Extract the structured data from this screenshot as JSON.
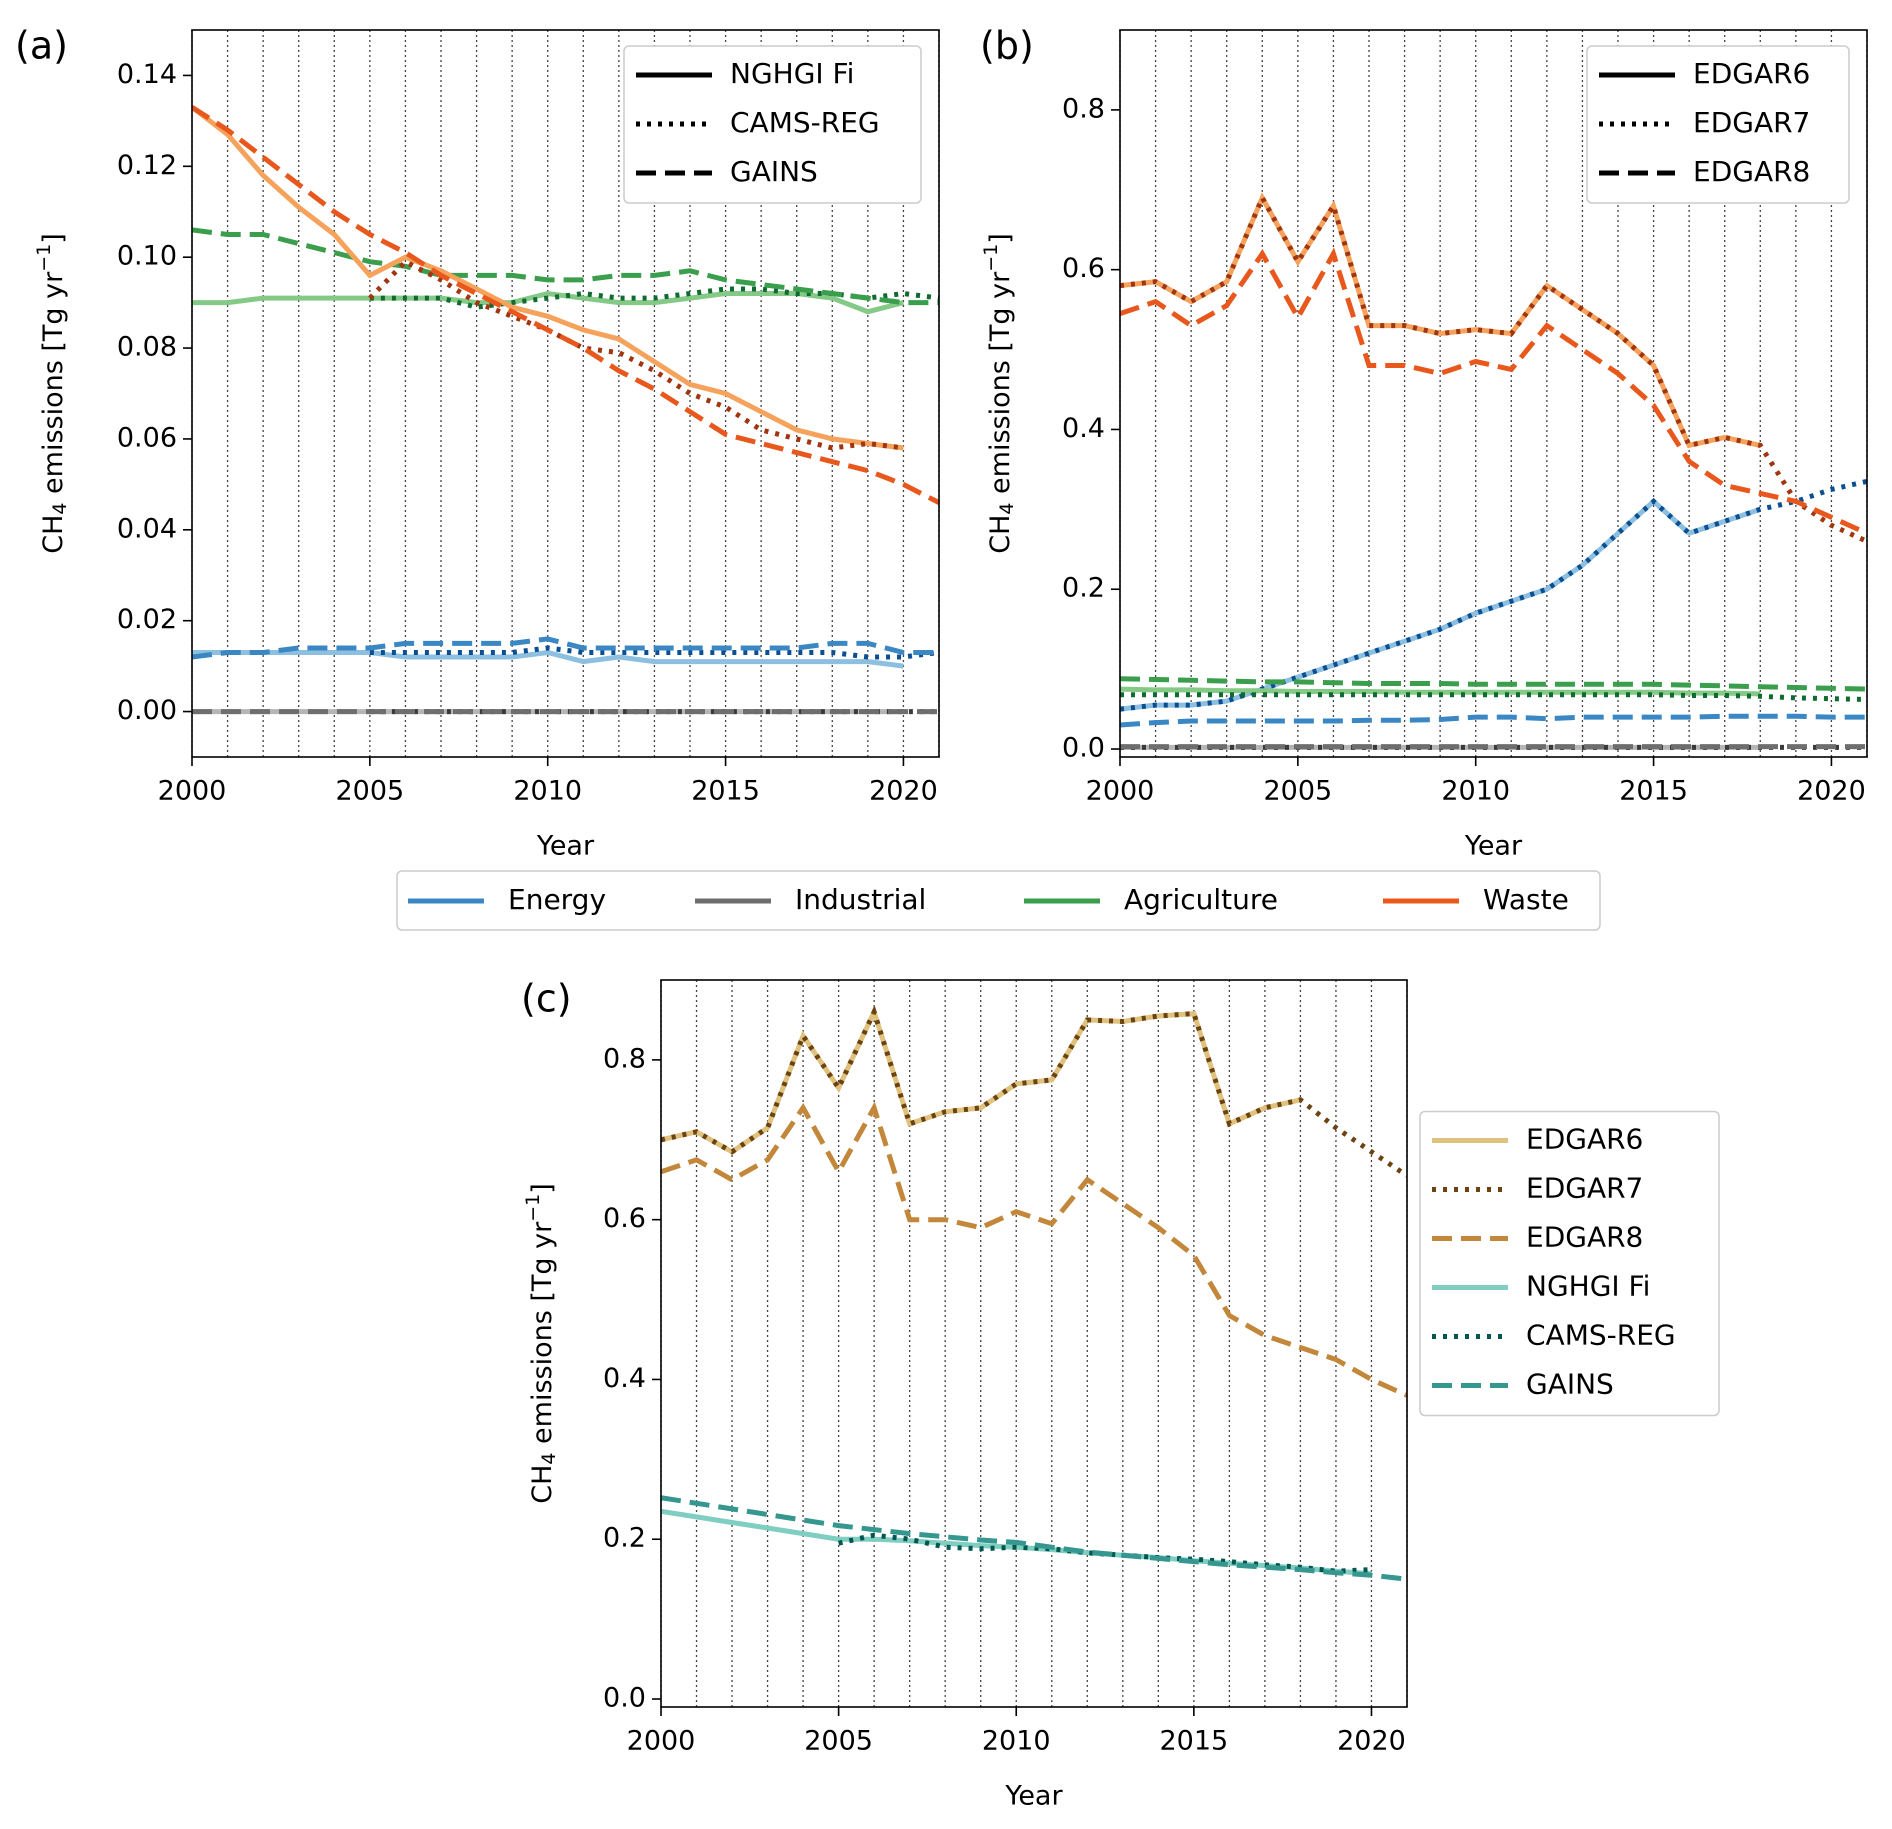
{
  "chart_data": [
    {
      "type": "line",
      "label": "(a)",
      "xlabel": "Year",
      "ylabel": [
        "CH",
        "4",
        " emissions [Tg yr",
        "−1",
        "]"
      ],
      "x": [
        2000,
        2001,
        2002,
        2003,
        2004,
        2005,
        2006,
        2007,
        2008,
        2009,
        2010,
        2011,
        2012,
        2013,
        2014,
        2015,
        2016,
        2017,
        2018,
        2019,
        2020,
        2021
      ],
      "xlim": [
        2000,
        2021
      ],
      "xticks": [
        2000,
        2005,
        2010,
        2015,
        2020
      ],
      "ylim": [
        -0.01,
        0.15
      ],
      "yticks": [
        {
          "value": 0,
          "label": "0.00"
        },
        0.02,
        0.04,
        0.06,
        0.08,
        {
          "value": 0.1,
          "label": "0.10"
        },
        0.12,
        0.14
      ],
      "grid": true,
      "legend": {
        "position": "upper right",
        "entries": [
          {
            "name": "NGHGI Fi",
            "style": "solid"
          },
          {
            "name": "CAMS-REG",
            "style": "dotted"
          },
          {
            "name": "GAINS",
            "style": "dashed"
          }
        ]
      },
      "color_legend": {
        "position": "below",
        "entries": [
          {
            "name": "Energy",
            "color": "#3a87c4"
          },
          {
            "name": "Industrial",
            "color": "#6e6e6e"
          },
          {
            "name": "Agriculture",
            "color": "#3a9e4c"
          },
          {
            "name": "Waste",
            "color": "#e8581d"
          }
        ]
      },
      "series": [
        {
          "color": "#b5b5b5",
          "style": "solid",
          "values": [
            0,
            0,
            0,
            0,
            0,
            0,
            0,
            0,
            0,
            0,
            0,
            0,
            0,
            0,
            0,
            0,
            0,
            0,
            0,
            0,
            0,
            null
          ]
        },
        {
          "color": "#3a3a3a",
          "style": "dotted",
          "values": [
            null,
            null,
            null,
            null,
            null,
            0,
            0,
            0,
            0,
            0,
            0,
            0,
            0,
            0,
            0,
            0,
            0,
            0,
            0,
            0,
            0,
            0
          ]
        },
        {
          "color": "#6e6e6e",
          "style": "dashed",
          "values": [
            0,
            0,
            0,
            0,
            0,
            0,
            0,
            0,
            0,
            0,
            0,
            0,
            0,
            0,
            0,
            0,
            0,
            0,
            0,
            0,
            0,
            0
          ]
        },
        {
          "color": "#8dbfe0",
          "style": "solid",
          "values": [
            0.013,
            0.013,
            0.013,
            0.013,
            0.013,
            0.013,
            0.012,
            0.012,
            0.012,
            0.012,
            0.013,
            0.011,
            0.012,
            0.011,
            0.011,
            0.011,
            0.011,
            0.011,
            0.011,
            0.011,
            0.01,
            null
          ]
        },
        {
          "color": "#0b4f93",
          "style": "dotted",
          "values": [
            null,
            null,
            null,
            null,
            null,
            0.013,
            0.013,
            0.013,
            0.013,
            0.013,
            0.014,
            0.013,
            0.013,
            0.013,
            0.013,
            0.013,
            0.013,
            0.013,
            0.013,
            0.012,
            0.012,
            0.013
          ]
        },
        {
          "color": "#3a87c4",
          "style": "dashed",
          "values": [
            0.012,
            0.013,
            0.013,
            0.014,
            0.014,
            0.014,
            0.015,
            0.015,
            0.015,
            0.015,
            0.016,
            0.014,
            0.014,
            0.014,
            0.014,
            0.014,
            0.014,
            0.014,
            0.015,
            0.015,
            0.013,
            0.013
          ]
        },
        {
          "color": "#85c986",
          "style": "solid",
          "values": [
            0.09,
            0.09,
            0.091,
            0.091,
            0.091,
            0.091,
            0.091,
            0.091,
            0.09,
            0.09,
            0.092,
            0.091,
            0.09,
            0.09,
            0.091,
            0.092,
            0.092,
            0.092,
            0.091,
            0.088,
            0.09,
            null
          ]
        },
        {
          "color": "#0f6b30",
          "style": "dotted",
          "values": [
            null,
            null,
            null,
            null,
            null,
            0.091,
            0.091,
            0.091,
            0.089,
            0.09,
            0.091,
            0.092,
            0.091,
            0.091,
            0.092,
            0.093,
            0.093,
            0.092,
            0.092,
            0.091,
            0.092,
            0.091
          ]
        },
        {
          "color": "#3a9e4c",
          "style": "dashed",
          "values": [
            0.106,
            0.105,
            0.105,
            0.103,
            0.101,
            0.099,
            0.098,
            0.096,
            0.096,
            0.096,
            0.095,
            0.095,
            0.096,
            0.096,
            0.097,
            0.095,
            0.094,
            0.093,
            0.092,
            0.091,
            0.09,
            0.09
          ]
        },
        {
          "color": "#f5a35c",
          "style": "solid",
          "values": [
            0.133,
            0.127,
            0.118,
            0.111,
            0.105,
            0.096,
            0.1,
            0.097,
            0.093,
            0.089,
            0.087,
            0.084,
            0.082,
            0.077,
            0.072,
            0.07,
            0.066,
            0.062,
            0.06,
            0.059,
            0.058,
            null
          ]
        },
        {
          "color": "#a0350f",
          "style": "dotted",
          "values": [
            null,
            null,
            null,
            null,
            null,
            0.091,
            0.099,
            0.095,
            0.09,
            0.087,
            0.084,
            0.08,
            0.079,
            0.075,
            0.07,
            0.067,
            0.062,
            0.06,
            0.058,
            0.059,
            0.058,
            null
          ]
        },
        {
          "color": "#e8581d",
          "style": "dashed",
          "values": [
            0.133,
            0.128,
            0.122,
            0.116,
            0.11,
            0.105,
            0.101,
            0.096,
            0.092,
            0.088,
            0.084,
            0.08,
            0.075,
            0.071,
            0.066,
            0.061,
            0.059,
            0.057,
            0.055,
            0.053,
            0.05,
            0.046
          ]
        }
      ]
    },
    {
      "type": "line",
      "label": "(b)",
      "xlabel": "Year",
      "ylabel": [
        "CH",
        "4",
        " emissions [Tg yr",
        "−1",
        "]"
      ],
      "x": [
        2000,
        2001,
        2002,
        2003,
        2004,
        2005,
        2006,
        2007,
        2008,
        2009,
        2010,
        2011,
        2012,
        2013,
        2014,
        2015,
        2016,
        2017,
        2018,
        2019,
        2020,
        2021
      ],
      "xlim": [
        2000,
        2021
      ],
      "xticks": [
        2000,
        2005,
        2010,
        2015,
        2020
      ],
      "ylim": [
        -0.01,
        0.9
      ],
      "yticks": [
        {
          "value": 0,
          "label": "0.0"
        },
        0.2,
        0.4,
        0.6,
        0.8
      ],
      "grid": true,
      "legend": {
        "position": "upper right",
        "entries": [
          {
            "name": "EDGAR6",
            "style": "solid"
          },
          {
            "name": "EDGAR7",
            "style": "dotted"
          },
          {
            "name": "EDGAR8",
            "style": "dashed"
          }
        ]
      },
      "series": [
        {
          "color": "#b5b5b5",
          "style": "solid",
          "values": [
            0.002,
            0.002,
            0.002,
            0.002,
            0.002,
            0.002,
            0.002,
            0.002,
            0.002,
            0.002,
            0.002,
            0.002,
            0.002,
            0.002,
            0.002,
            0.002,
            0.002,
            0.002,
            0.002,
            null,
            null,
            null
          ]
        },
        {
          "color": "#3a3a3a",
          "style": "dotted",
          "values": [
            0.002,
            0.002,
            0.002,
            0.002,
            0.002,
            0.002,
            0.002,
            0.002,
            0.002,
            0.002,
            0.002,
            0.002,
            0.002,
            0.002,
            0.002,
            0.002,
            0.002,
            0.002,
            0.002,
            0.002,
            0.002,
            0.002
          ]
        },
        {
          "color": "#6e6e6e",
          "style": "dashed",
          "values": [
            0.003,
            0.003,
            0.003,
            0.003,
            0.003,
            0.003,
            0.003,
            0.003,
            0.003,
            0.003,
            0.003,
            0.003,
            0.003,
            0.003,
            0.003,
            0.003,
            0.003,
            0.003,
            0.003,
            0.003,
            0.003,
            0.003
          ]
        },
        {
          "color": "#8dbfe0",
          "style": "solid",
          "values": [
            0.05,
            0.055,
            0.055,
            0.06,
            0.075,
            0.09,
            0.105,
            0.12,
            0.135,
            0.15,
            0.17,
            0.185,
            0.2,
            0.23,
            0.27,
            0.31,
            0.27,
            0.285,
            0.3,
            null,
            null,
            null
          ]
        },
        {
          "color": "#0b4f93",
          "style": "dotted",
          "values": [
            0.05,
            0.055,
            0.055,
            0.06,
            0.075,
            0.09,
            0.105,
            0.12,
            0.135,
            0.15,
            0.17,
            0.185,
            0.2,
            0.23,
            0.27,
            0.31,
            0.27,
            0.285,
            0.3,
            0.31,
            0.325,
            0.335
          ]
        },
        {
          "color": "#3a87c4",
          "style": "dashed",
          "values": [
            0.03,
            0.033,
            0.035,
            0.035,
            0.035,
            0.035,
            0.035,
            0.036,
            0.036,
            0.037,
            0.04,
            0.04,
            0.038,
            0.04,
            0.04,
            0.04,
            0.04,
            0.041,
            0.041,
            0.041,
            0.04,
            0.04
          ]
        },
        {
          "color": "#85c986",
          "style": "solid",
          "values": [
            0.075,
            0.074,
            0.074,
            0.073,
            0.073,
            0.072,
            0.072,
            0.072,
            0.071,
            0.071,
            0.071,
            0.071,
            0.071,
            0.071,
            0.071,
            0.071,
            0.07,
            0.07,
            0.069,
            null,
            null,
            null
          ]
        },
        {
          "color": "#0f6b30",
          "style": "dotted",
          "values": [
            0.068,
            0.068,
            0.068,
            0.068,
            0.068,
            0.068,
            0.068,
            0.068,
            0.068,
            0.068,
            0.068,
            0.068,
            0.068,
            0.068,
            0.068,
            0.068,
            0.067,
            0.067,
            0.066,
            0.064,
            0.063,
            0.062
          ]
        },
        {
          "color": "#3a9e4c",
          "style": "dashed",
          "values": [
            0.088,
            0.087,
            0.086,
            0.085,
            0.084,
            0.084,
            0.083,
            0.082,
            0.082,
            0.082,
            0.081,
            0.081,
            0.081,
            0.081,
            0.081,
            0.081,
            0.08,
            0.079,
            0.078,
            0.077,
            0.076,
            0.075
          ]
        },
        {
          "color": "#f5a35c",
          "style": "solid",
          "values": [
            0.58,
            0.585,
            0.56,
            0.585,
            0.69,
            0.61,
            0.68,
            0.53,
            0.53,
            0.52,
            0.525,
            0.52,
            0.58,
            0.55,
            0.52,
            0.48,
            0.38,
            0.39,
            0.38,
            null,
            null,
            null
          ]
        },
        {
          "color": "#a0350f",
          "style": "dotted",
          "values": [
            0.58,
            0.585,
            0.56,
            0.585,
            0.69,
            0.61,
            0.68,
            0.53,
            0.53,
            0.52,
            0.525,
            0.52,
            0.58,
            0.55,
            0.52,
            0.48,
            0.38,
            0.39,
            0.38,
            0.31,
            0.28,
            0.26
          ]
        },
        {
          "color": "#e8581d",
          "style": "dashed",
          "values": [
            0.545,
            0.56,
            0.53,
            0.555,
            0.62,
            0.54,
            0.62,
            0.48,
            0.48,
            0.47,
            0.485,
            0.475,
            0.53,
            0.5,
            0.47,
            0.43,
            0.36,
            0.33,
            0.32,
            0.31,
            0.29,
            0.27
          ]
        }
      ]
    },
    {
      "type": "line",
      "label": "(c)",
      "xlabel": "Year",
      "ylabel": [
        "CH",
        "4",
        " emissions [Tg yr",
        "−1",
        "]"
      ],
      "x": [
        2000,
        2001,
        2002,
        2003,
        2004,
        2005,
        2006,
        2007,
        2008,
        2009,
        2010,
        2011,
        2012,
        2013,
        2014,
        2015,
        2016,
        2017,
        2018,
        2019,
        2020,
        2021
      ],
      "xlim": [
        2000,
        2021
      ],
      "xticks": [
        2000,
        2005,
        2010,
        2015,
        2020
      ],
      "ylim": [
        -0.01,
        0.9
      ],
      "yticks": [
        {
          "value": 0,
          "label": "0.0"
        },
        0.2,
        0.4,
        0.6,
        0.8
      ],
      "grid": true,
      "legend": {
        "position": "outside right"
      },
      "series": [
        {
          "name": "EDGAR6",
          "color": "#dfc27d",
          "style": "solid",
          "values": [
            0.7,
            0.71,
            0.685,
            0.715,
            0.83,
            0.765,
            0.86,
            0.72,
            0.735,
            0.74,
            0.77,
            0.775,
            0.85,
            0.848,
            0.855,
            0.858,
            0.72,
            0.74,
            0.75,
            null,
            null,
            null
          ]
        },
        {
          "name": "EDGAR7",
          "color": "#6b4210",
          "style": "dotted",
          "values": [
            0.7,
            0.71,
            0.685,
            0.715,
            0.83,
            0.765,
            0.86,
            0.72,
            0.735,
            0.74,
            0.77,
            0.775,
            0.85,
            0.848,
            0.855,
            0.858,
            0.72,
            0.74,
            0.75,
            0.715,
            0.685,
            0.655
          ]
        },
        {
          "name": "EDGAR8",
          "color": "#c2873a",
          "style": "dashed",
          "values": [
            0.66,
            0.675,
            0.65,
            0.675,
            0.74,
            0.66,
            0.74,
            0.6,
            0.6,
            0.59,
            0.61,
            0.595,
            0.65,
            0.62,
            0.59,
            0.555,
            0.48,
            0.455,
            0.44,
            0.425,
            0.4,
            0.38
          ]
        },
        {
          "name": "NGHGI Fi",
          "color": "#80cdc1",
          "style": "solid",
          "values": [
            0.235,
            0.228,
            0.221,
            0.214,
            0.207,
            0.2,
            0.2,
            0.198,
            0.195,
            0.192,
            0.19,
            0.187,
            0.183,
            0.18,
            0.177,
            0.173,
            0.17,
            0.167,
            0.164,
            0.16,
            0.157,
            null
          ]
        },
        {
          "name": "CAMS-REG",
          "color": "#01574f",
          "style": "dotted",
          "values": [
            null,
            null,
            null,
            null,
            null,
            0.195,
            0.205,
            0.2,
            0.19,
            0.188,
            0.19,
            0.188,
            0.183,
            0.18,
            0.177,
            0.175,
            0.172,
            0.168,
            0.165,
            0.16,
            0.162,
            null
          ]
        },
        {
          "name": "GAINS",
          "color": "#35978f",
          "style": "dashed",
          "values": [
            0.252,
            0.245,
            0.238,
            0.231,
            0.224,
            0.217,
            0.212,
            0.207,
            0.203,
            0.199,
            0.196,
            0.19,
            0.184,
            0.18,
            0.176,
            0.172,
            0.168,
            0.165,
            0.162,
            0.158,
            0.155,
            0.15
          ]
        }
      ]
    }
  ]
}
